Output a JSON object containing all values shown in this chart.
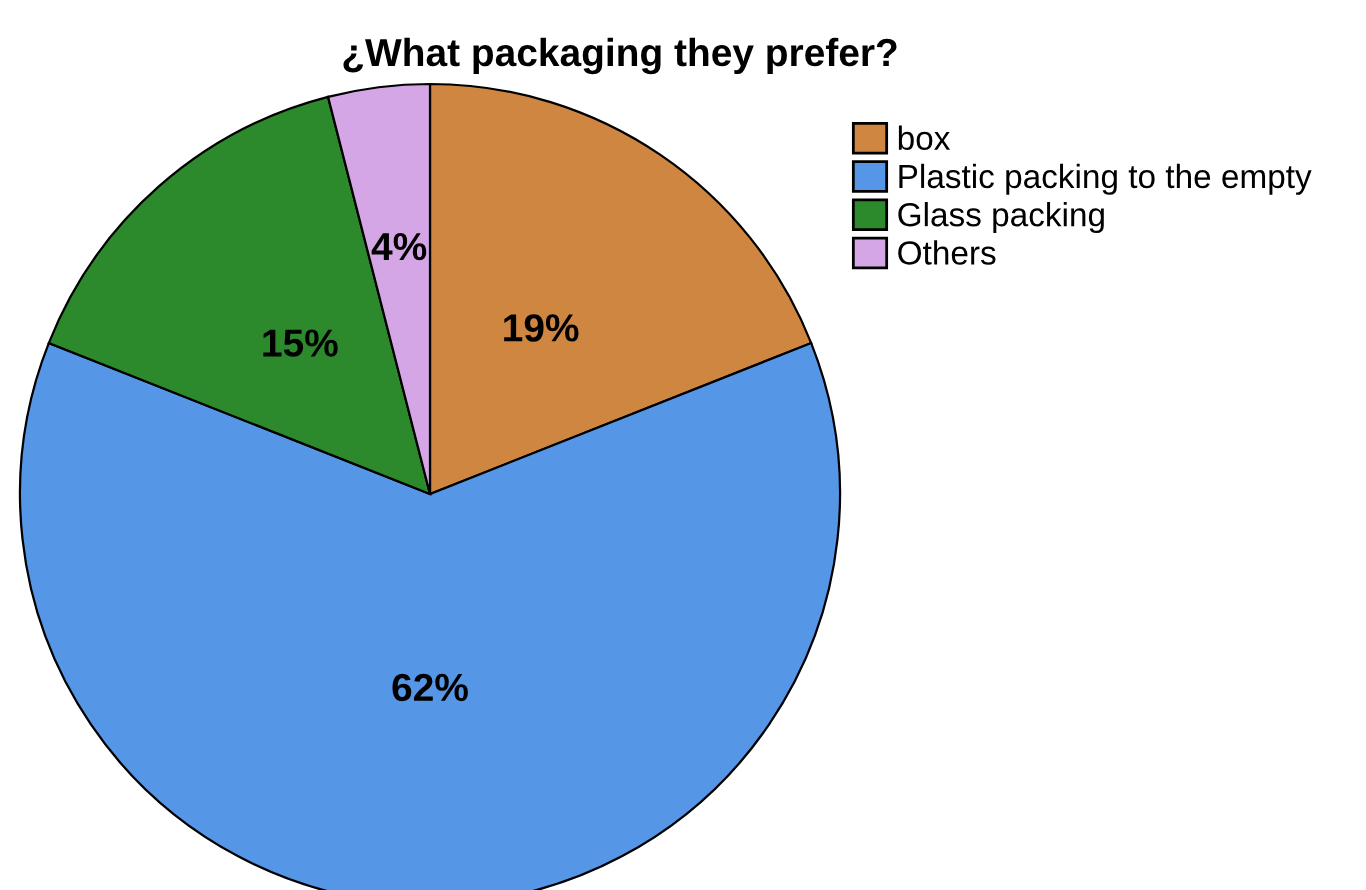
{
  "chart_data": {
    "type": "pie",
    "title": "¿What packaging they prefer?",
    "categories": [
      "box",
      "Plastic packing to the empty",
      "Glass packing",
      "Others"
    ],
    "values": [
      19,
      62,
      15,
      4
    ],
    "colors": [
      "#cf8640",
      "#5596e6",
      "#2c8a2c",
      "#d5a6e6"
    ],
    "value_labels": [
      "19%",
      "62%",
      "15%",
      "4%"
    ],
    "legend": "top right"
  }
}
